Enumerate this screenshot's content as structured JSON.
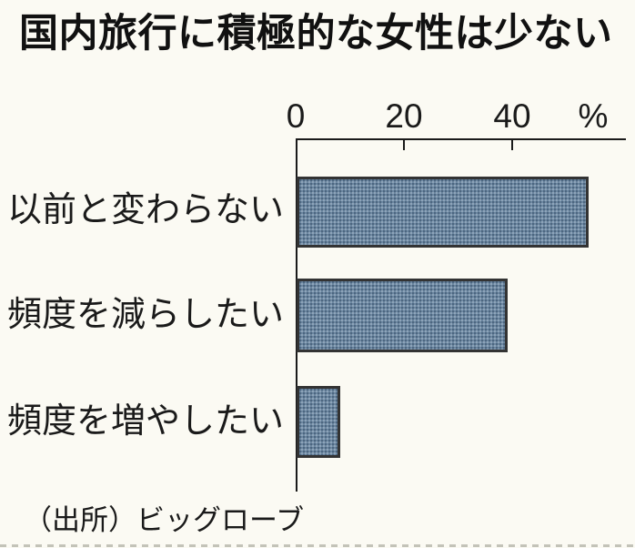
{
  "chart_data": {
    "type": "bar",
    "orientation": "horizontal",
    "title": "国内旅行に積極的な女性は少ない",
    "categories": [
      "以前と変わらない",
      "頻度を減らしたい",
      "頻度を増やしたい"
    ],
    "values": [
      54,
      39,
      8
    ],
    "unit": "%",
    "x_ticks": [
      0,
      20,
      40
    ],
    "x_tick_labels": [
      "0",
      "20",
      "40"
    ],
    "unit_label": "%",
    "xlim": [
      0,
      61
    ],
    "xlabel": "",
    "ylabel": "",
    "grid": false,
    "legend": "none",
    "source": "（出所）ビッグローブ",
    "bar_color": "#6c88a2",
    "bar_border_color": "#333333",
    "axis_color": "#1a1a1a",
    "background_color": "#fbfaf3"
  }
}
